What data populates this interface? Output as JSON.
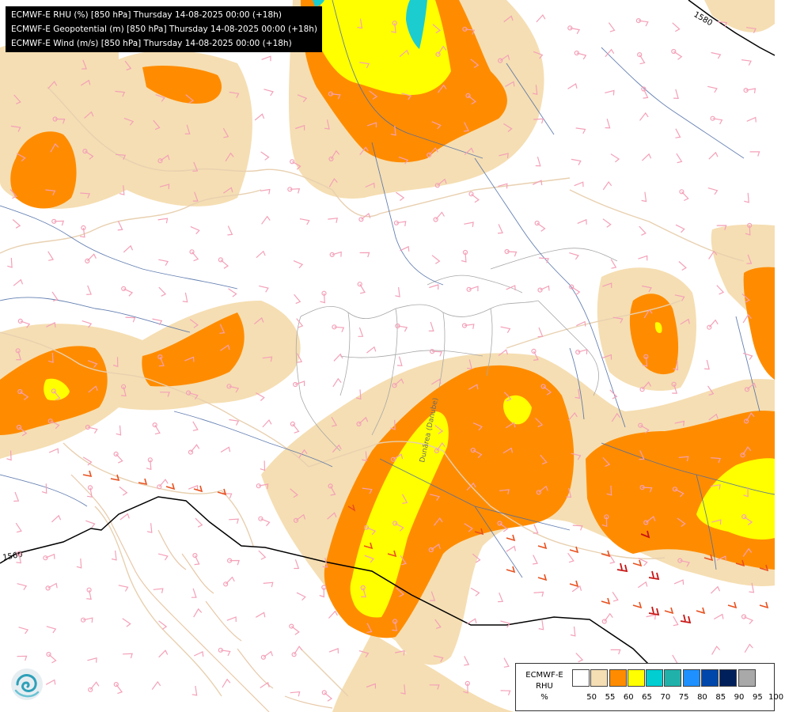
{
  "map": {
    "layers": [
      "ECMWF-E RHU (%) [850 hPa] Thursday 14-08-2025 00:00 (+18h)",
      "ECMWF-E Geopotential (m) [850 hPa] Thursday 14-08-2025 00:00 (+18h)",
      "ECMWF-E Wind (m/s) [850 hPa] Thursday 14-08-2025 00:00 (+18h)"
    ],
    "contour_labels": [
      "1580",
      "1560"
    ],
    "river_label": "Dunărea (Danube)"
  },
  "legend": {
    "title_line1": "ECMWF-E",
    "title_line2": "RHU",
    "unit": "%",
    "classes": [
      {
        "value": "50",
        "color": "#ffffff"
      },
      {
        "value": "55",
        "color": "#f5deb3"
      },
      {
        "value": "60",
        "color": "#ff8c00"
      },
      {
        "value": "65",
        "color": "#ffff00"
      },
      {
        "value": "70",
        "color": "#00ced1"
      },
      {
        "value": "75",
        "color": "#20b2aa"
      },
      {
        "value": "80",
        "color": "#1e90ff"
      },
      {
        "value": "85",
        "color": "#0047ab"
      },
      {
        "value": "90",
        "color": "#00205b"
      },
      {
        "value": "95",
        "color": "#a9a9a9"
      },
      {
        "value": "100",
        "color": "#5a5a5a"
      }
    ]
  },
  "logo": {
    "icon": "ecmwf-logo-icon"
  }
}
